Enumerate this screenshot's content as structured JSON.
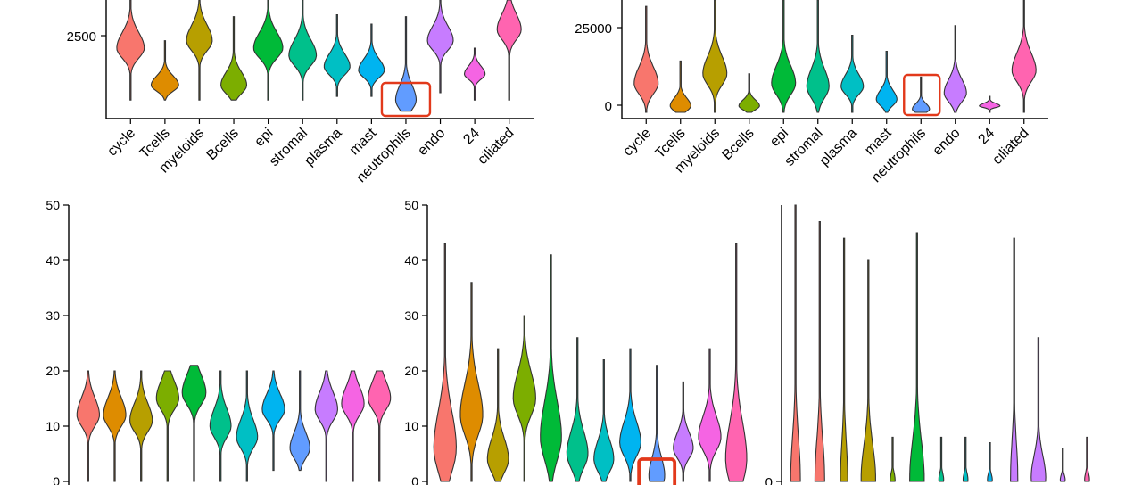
{
  "colors": {
    "cycle": "#f8766d",
    "Tcells": "#de8c00",
    "myeloids": "#b79f00",
    "Bcells": "#7cae00",
    "epi": "#00ba38",
    "stromal": "#00c08b",
    "plasma": "#00bfc4",
    "mast": "#00b4f0",
    "neutrophils": "#619cff",
    "endo": "#c77cff",
    "24": "#f564e3",
    "ciliated": "#ff64b0",
    "highlight": "#e2391b"
  },
  "chart_data": [
    {
      "type": "violin",
      "panel": "top-left",
      "categories": [
        "cycle",
        "Tcells",
        "myeloids",
        "Bcells",
        "epi",
        "stromal",
        "plasma",
        "mast",
        "neutrophils",
        "endo",
        "24",
        "ciliated"
      ],
      "yticks": [
        "2500"
      ],
      "ylim": [
        600,
        3800
      ],
      "highlight": "neutrophils",
      "violins": [
        {
          "min": 1100,
          "max": 3800,
          "peak": 2500,
          "width": 0.8
        },
        {
          "min": 1100,
          "max": 2700,
          "peak": 1500,
          "width": 0.8
        },
        {
          "min": 1100,
          "max": 3800,
          "peak": 2700,
          "width": 0.75
        },
        {
          "min": 1100,
          "max": 3350,
          "peak": 1500,
          "width": 0.75
        },
        {
          "min": 1100,
          "max": 3800,
          "peak": 2500,
          "width": 0.85
        },
        {
          "min": 1100,
          "max": 3800,
          "peak": 2300,
          "width": 0.8
        },
        {
          "min": 1200,
          "max": 3400,
          "peak": 2000,
          "width": 0.75
        },
        {
          "min": 1200,
          "max": 3150,
          "peak": 1900,
          "width": 0.75
        },
        {
          "min": 800,
          "max": 3350,
          "peak": 1100,
          "width": 0.6
        },
        {
          "min": 1300,
          "max": 3800,
          "peak": 2700,
          "width": 0.75
        },
        {
          "min": 1100,
          "max": 2500,
          "peak": 1800,
          "width": 0.6
        },
        {
          "min": 1100,
          "max": 3800,
          "peak": 3000,
          "width": 0.7
        }
      ]
    },
    {
      "type": "violin",
      "panel": "top-right",
      "categories": [
        "cycle",
        "Tcells",
        "myeloids",
        "Bcells",
        "epi",
        "stromal",
        "plasma",
        "mast",
        "neutrophils",
        "endo",
        "24",
        "ciliated"
      ],
      "yticks": [
        "0",
        "25000"
      ],
      "ylim": [
        0,
        35000
      ],
      "highlight": "neutrophils",
      "violins": [
        {
          "min": 0,
          "max": 33000,
          "peak": 9000,
          "width": 0.7
        },
        {
          "min": 0,
          "max": 16000,
          "peak": 2000,
          "width": 0.6
        },
        {
          "min": 0,
          "max": 35000,
          "peak": 12000,
          "width": 0.7
        },
        {
          "min": 0,
          "max": 12000,
          "peak": 2000,
          "width": 0.6
        },
        {
          "min": 0,
          "max": 35000,
          "peak": 9000,
          "width": 0.7
        },
        {
          "min": 0,
          "max": 35000,
          "peak": 8000,
          "width": 0.65
        },
        {
          "min": 0,
          "max": 24000,
          "peak": 8000,
          "width": 0.65
        },
        {
          "min": 0,
          "max": 19000,
          "peak": 4000,
          "width": 0.6
        },
        {
          "min": 0,
          "max": 11000,
          "peak": 1000,
          "width": 0.5
        },
        {
          "min": 0,
          "max": 27000,
          "peak": 6000,
          "width": 0.65
        },
        {
          "min": 0,
          "max": 5000,
          "peak": 2000,
          "width": 0.6
        },
        {
          "min": 0,
          "max": 35000,
          "peak": 13000,
          "width": 0.7
        }
      ]
    },
    {
      "type": "violin",
      "panel": "bottom-left",
      "yticks": [
        "0",
        "10",
        "20",
        "30",
        "40",
        "50"
      ],
      "ylim": [
        0,
        50
      ],
      "violins": [
        {
          "min": 0,
          "max": 20,
          "peak": 12,
          "width": 0.85
        },
        {
          "min": 0,
          "max": 20,
          "peak": 12,
          "width": 0.85
        },
        {
          "min": 0,
          "max": 20,
          "peak": 11,
          "width": 0.85
        },
        {
          "min": 0,
          "max": 20,
          "peak": 15,
          "width": 0.85
        },
        {
          "min": 0,
          "max": 21,
          "peak": 16,
          "width": 0.9
        },
        {
          "min": 0,
          "max": 20,
          "peak": 10,
          "width": 0.8
        },
        {
          "min": 0,
          "max": 20,
          "peak": 8,
          "width": 0.8
        },
        {
          "min": 2,
          "max": 20,
          "peak": 13,
          "width": 0.85
        },
        {
          "min": 2,
          "max": 20,
          "peak": 6,
          "width": 0.75
        },
        {
          "min": 0,
          "max": 20,
          "peak": 13,
          "width": 0.85
        },
        {
          "min": 0,
          "max": 20,
          "peak": 14,
          "width": 0.85
        },
        {
          "min": 0,
          "max": 20,
          "peak": 15,
          "width": 0.85
        }
      ]
    },
    {
      "type": "violin",
      "panel": "bottom-middle",
      "yticks": [
        "0",
        "10",
        "20",
        "30",
        "40",
        "50"
      ],
      "ylim": [
        0,
        50
      ],
      "highlight_index": 8,
      "violins": [
        {
          "min": 0,
          "max": 43,
          "peak": 6,
          "width": 0.85
        },
        {
          "min": 0,
          "max": 36,
          "peak": 12,
          "width": 0.85
        },
        {
          "min": 0,
          "max": 24,
          "peak": 4,
          "width": 0.8
        },
        {
          "min": 0,
          "max": 30,
          "peak": 15,
          "width": 0.85
        },
        {
          "min": 0,
          "max": 41,
          "peak": 8,
          "width": 0.8
        },
        {
          "min": 0,
          "max": 26,
          "peak": 5,
          "width": 0.8
        },
        {
          "min": 0,
          "max": 22,
          "peak": 4,
          "width": 0.75
        },
        {
          "min": 0,
          "max": 24,
          "peak": 7,
          "width": 0.8
        },
        {
          "min": 0,
          "max": 21,
          "peak": 1,
          "width": 0.6
        },
        {
          "min": 0,
          "max": 18,
          "peak": 6,
          "width": 0.75
        },
        {
          "min": 0,
          "max": 24,
          "peak": 8,
          "width": 0.85
        },
        {
          "min": 0,
          "max": 43,
          "peak": 4,
          "width": 0.8
        }
      ]
    },
    {
      "type": "violin",
      "panel": "bottom-right",
      "yticks": [
        "0"
      ],
      "ylim": [
        0,
        50
      ],
      "violins": [
        {
          "min": 0,
          "max": 50,
          "peak": 0.3,
          "width": 0.4
        },
        {
          "min": 0,
          "max": 47,
          "peak": 0.3,
          "width": 0.4
        },
        {
          "min": 0,
          "max": 44,
          "peak": 0.3,
          "width": 0.3
        },
        {
          "min": 0,
          "max": 40,
          "peak": 0.4,
          "width": 0.6
        },
        {
          "min": 0,
          "max": 8,
          "peak": 0.3,
          "width": 0.2
        },
        {
          "min": 0,
          "max": 45,
          "peak": 0.4,
          "width": 0.6
        },
        {
          "min": 0,
          "max": 8,
          "peak": 0.3,
          "width": 0.2
        },
        {
          "min": 0,
          "max": 8,
          "peak": 0.3,
          "width": 0.2
        },
        {
          "min": 0,
          "max": 7,
          "peak": 0.3,
          "width": 0.2
        },
        {
          "min": 0,
          "max": 44,
          "peak": 0.3,
          "width": 0.3
        },
        {
          "min": 0,
          "max": 26,
          "peak": 0.6,
          "width": 0.6
        },
        {
          "min": 0,
          "max": 6,
          "peak": 0.3,
          "width": 0.2
        },
        {
          "min": 0,
          "max": 8,
          "peak": 0.3,
          "width": 0.2
        }
      ]
    }
  ]
}
